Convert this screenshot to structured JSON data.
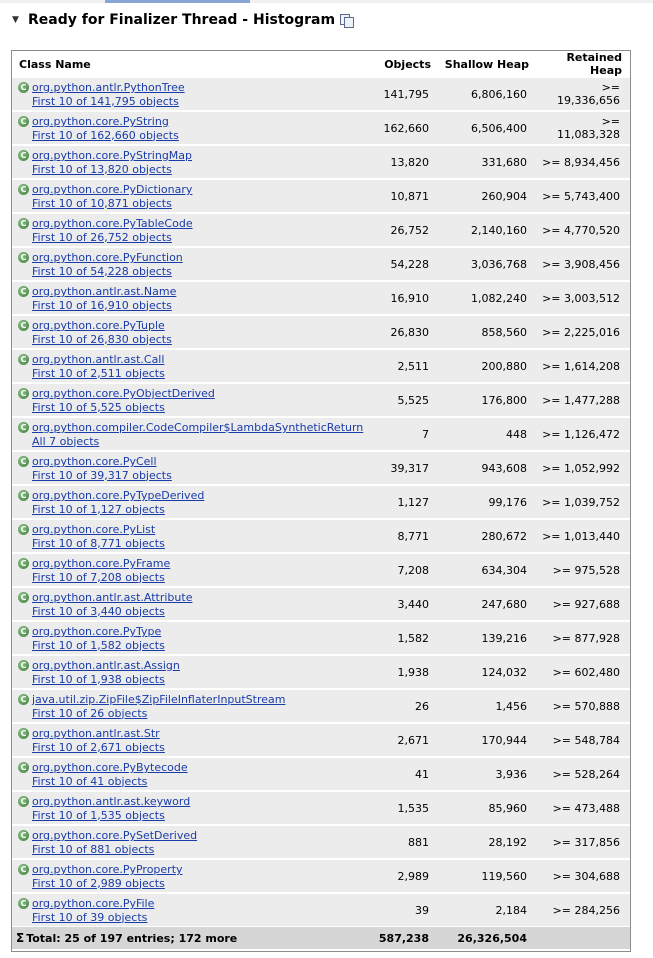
{
  "header": {
    "title": "Ready for Finalizer Thread - Histogram"
  },
  "columns": [
    "Class Name",
    "Objects",
    "Shallow Heap",
    "Retained Heap"
  ],
  "rows": [
    {
      "cls": "org.python.antlr.PythonTree",
      "link": "First 10 of 141,795 objects",
      "objects": "141,795",
      "shallow": "6,806,160",
      "retained": ">= 19,336,656"
    },
    {
      "cls": "org.python.core.PyString",
      "link": "First 10 of 162,660 objects",
      "objects": "162,660",
      "shallow": "6,506,400",
      "retained": ">= 11,083,328"
    },
    {
      "cls": "org.python.core.PyStringMap",
      "link": "First 10 of 13,820 objects",
      "objects": "13,820",
      "shallow": "331,680",
      "retained": ">= 8,934,456"
    },
    {
      "cls": "org.python.core.PyDictionary",
      "link": "First 10 of 10,871 objects",
      "objects": "10,871",
      "shallow": "260,904",
      "retained": ">= 5,743,400"
    },
    {
      "cls": "org.python.core.PyTableCode",
      "link": "First 10 of 26,752 objects",
      "objects": "26,752",
      "shallow": "2,140,160",
      "retained": ">= 4,770,520"
    },
    {
      "cls": "org.python.core.PyFunction",
      "link": "First 10 of 54,228 objects",
      "objects": "54,228",
      "shallow": "3,036,768",
      "retained": ">= 3,908,456"
    },
    {
      "cls": "org.python.antlr.ast.Name",
      "link": "First 10 of 16,910 objects",
      "objects": "16,910",
      "shallow": "1,082,240",
      "retained": ">= 3,003,512"
    },
    {
      "cls": "org.python.core.PyTuple",
      "link": "First 10 of 26,830 objects",
      "objects": "26,830",
      "shallow": "858,560",
      "retained": ">= 2,225,016"
    },
    {
      "cls": "org.python.antlr.ast.Call",
      "link": "First 10 of 2,511 objects",
      "objects": "2,511",
      "shallow": "200,880",
      "retained": ">= 1,614,208"
    },
    {
      "cls": "org.python.core.PyObjectDerived",
      "link": "First 10 of 5,525 objects",
      "objects": "5,525",
      "shallow": "176,800",
      "retained": ">= 1,477,288"
    },
    {
      "cls": "org.python.compiler.CodeCompiler$LambdaSyntheticReturn",
      "link": "All 7 objects",
      "objects": "7",
      "shallow": "448",
      "retained": ">= 1,126,472"
    },
    {
      "cls": "org.python.core.PyCell",
      "link": "First 10 of 39,317 objects",
      "objects": "39,317",
      "shallow": "943,608",
      "retained": ">= 1,052,992"
    },
    {
      "cls": "org.python.core.PyTypeDerived",
      "link": "First 10 of 1,127 objects",
      "objects": "1,127",
      "shallow": "99,176",
      "retained": ">= 1,039,752"
    },
    {
      "cls": "org.python.core.PyList",
      "link": "First 10 of 8,771 objects",
      "objects": "8,771",
      "shallow": "280,672",
      "retained": ">= 1,013,440"
    },
    {
      "cls": "org.python.core.PyFrame",
      "link": "First 10 of 7,208 objects",
      "objects": "7,208",
      "shallow": "634,304",
      "retained": ">= 975,528"
    },
    {
      "cls": "org.python.antlr.ast.Attribute",
      "link": "First 10 of 3,440 objects",
      "objects": "3,440",
      "shallow": "247,680",
      "retained": ">= 927,688"
    },
    {
      "cls": "org.python.core.PyType",
      "link": "First 10 of 1,582 objects",
      "objects": "1,582",
      "shallow": "139,216",
      "retained": ">= 877,928"
    },
    {
      "cls": "org.python.antlr.ast.Assign",
      "link": "First 10 of 1,938 objects",
      "objects": "1,938",
      "shallow": "124,032",
      "retained": ">= 602,480"
    },
    {
      "cls": "java.util.zip.ZipFile$ZipFileInflaterInputStream",
      "link": "First 10 of 26 objects",
      "objects": "26",
      "shallow": "1,456",
      "retained": ">= 570,888"
    },
    {
      "cls": "org.python.antlr.ast.Str",
      "link": "First 10 of 2,671 objects",
      "objects": "2,671",
      "shallow": "170,944",
      "retained": ">= 548,784"
    },
    {
      "cls": "org.python.core.PyBytecode",
      "link": "First 10 of 41 objects",
      "objects": "41",
      "shallow": "3,936",
      "retained": ">= 528,264"
    },
    {
      "cls": "org.python.antlr.ast.keyword",
      "link": "First 10 of 1,535 objects",
      "objects": "1,535",
      "shallow": "85,960",
      "retained": ">= 473,488"
    },
    {
      "cls": "org.python.core.PySetDerived",
      "link": "First 10 of 881 objects",
      "objects": "881",
      "shallow": "28,192",
      "retained": ">= 317,856"
    },
    {
      "cls": "org.python.core.PyProperty",
      "link": "First 10 of 2,989 objects",
      "objects": "2,989",
      "shallow": "119,560",
      "retained": ">= 304,688"
    },
    {
      "cls": "org.python.core.PyFile",
      "link": "First 10 of 39 objects",
      "objects": "39",
      "shallow": "2,184",
      "retained": ">= 284,256"
    }
  ],
  "total": {
    "label": "Total: 25 of 197 entries; 172 more",
    "objects": "587,238",
    "shallow": "26,326,504",
    "retained": ""
  },
  "icons": {
    "class_icon_glyph": "C",
    "twisty": "▼",
    "sigma": "Σ"
  }
}
